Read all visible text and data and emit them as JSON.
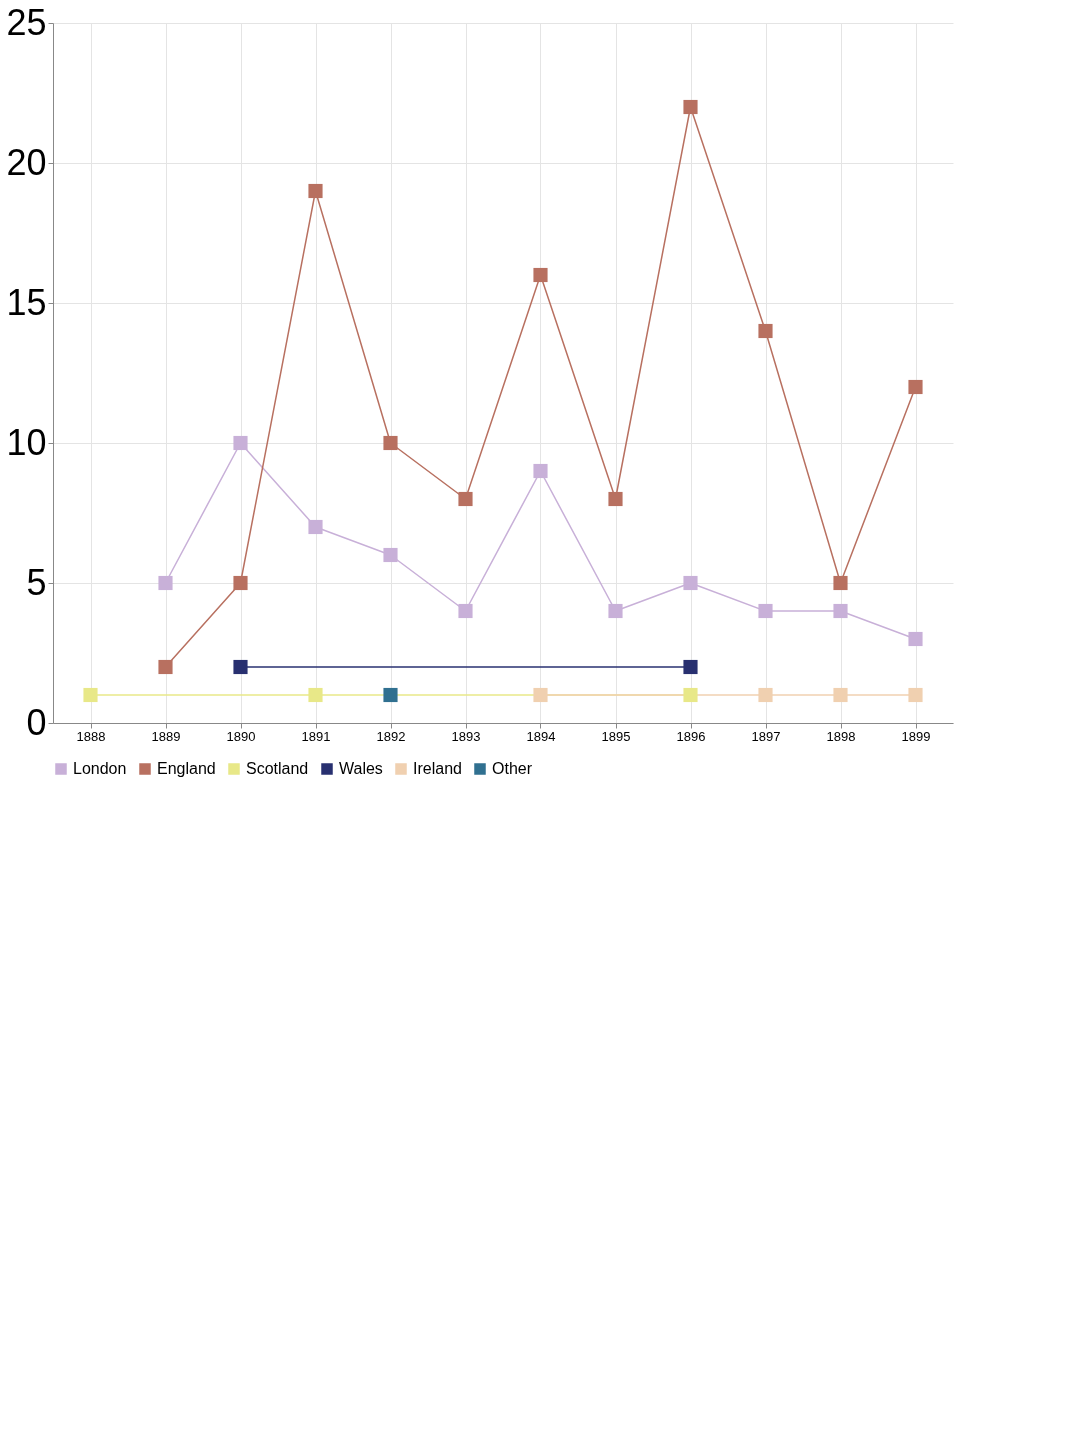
{
  "chart_data": {
    "type": "line",
    "categories": [
      "1888",
      "1889",
      "1890",
      "1891",
      "1892",
      "1893",
      "1894",
      "1895",
      "1896",
      "1897",
      "1898",
      "1899"
    ],
    "series": [
      {
        "name": "London",
        "color": "#c8b0d8",
        "values": [
          null,
          5,
          10,
          7,
          6,
          4,
          9,
          4,
          5,
          4,
          4,
          3
        ]
      },
      {
        "name": "England",
        "color": "#b87060",
        "values": [
          null,
          2,
          5,
          19,
          10,
          8,
          16,
          8,
          22,
          14,
          5,
          12
        ]
      },
      {
        "name": "Scotland",
        "color": "#e8e888",
        "values": [
          1,
          null,
          null,
          1,
          null,
          null,
          null,
          null,
          1,
          null,
          null,
          null
        ]
      },
      {
        "name": "Wales",
        "color": "#283070",
        "values": [
          null,
          null,
          2,
          null,
          null,
          null,
          null,
          null,
          2,
          null,
          null,
          null
        ]
      },
      {
        "name": "Ireland",
        "color": "#f0d0b0",
        "values": [
          null,
          null,
          null,
          null,
          null,
          null,
          1,
          null,
          null,
          1,
          1,
          1
        ]
      },
      {
        "name": "Other",
        "color": "#307090",
        "values": [
          null,
          null,
          null,
          null,
          1,
          null,
          null,
          null,
          null,
          null,
          null,
          null
        ]
      }
    ],
    "ylim": [
      0,
      25
    ],
    "yticks": [
      0,
      5,
      10,
      15,
      20,
      25
    ],
    "grid": true,
    "legend": "bottom",
    "marker": "square",
    "line_style": "solid"
  }
}
